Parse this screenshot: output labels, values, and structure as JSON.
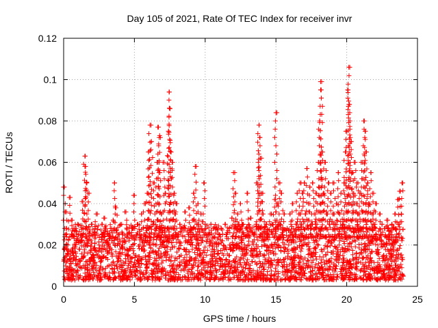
{
  "chart_data": {
    "type": "scatter",
    "title": "Day 105 of 2021, Rate Of TEC Index for receiver invr",
    "xlabel": "GPS time / hours",
    "ylabel": "ROTI / TECUs",
    "xlim": [
      0,
      25
    ],
    "ylim": [
      0,
      0.12
    ],
    "xticks": [
      0,
      5,
      10,
      15,
      20,
      25
    ],
    "xtick_labels": [
      "0",
      "5",
      "10",
      "15",
      "20",
      "25"
    ],
    "yticks": [
      0,
      0.02,
      0.04,
      0.06,
      0.08,
      0.1,
      0.12
    ],
    "ytick_labels": [
      "0",
      "0.02",
      "0.04",
      "0.06",
      "0.08",
      "0.1",
      "0.12"
    ],
    "grid": true,
    "marker": "+",
    "color": "#ff0000",
    "series": [
      {
        "name": "ROTI",
        "points": [
          [
            0.05,
            0.048
          ],
          [
            0.1,
            0.025
          ],
          [
            0.2,
            0.036
          ],
          [
            0.3,
            0.02
          ],
          [
            0.4,
            0.043
          ],
          [
            0.5,
            0.012
          ],
          [
            0.6,
            0.032
          ],
          [
            0.7,
            0.015
          ],
          [
            0.8,
            0.028
          ],
          [
            0.9,
            0.01
          ],
          [
            1.0,
            0.03
          ],
          [
            1.1,
            0.018
          ],
          [
            1.2,
            0.025
          ],
          [
            1.3,
            0.041
          ],
          [
            1.4,
            0.014
          ],
          [
            1.5,
            0.063
          ],
          [
            1.55,
            0.058
          ],
          [
            1.6,
            0.05
          ],
          [
            1.7,
            0.022
          ],
          [
            1.8,
            0.045
          ],
          [
            1.9,
            0.012
          ],
          [
            2.0,
            0.03
          ],
          [
            2.1,
            0.01
          ],
          [
            2.2,
            0.026
          ],
          [
            2.3,
            0.035
          ],
          [
            2.4,
            0.015
          ],
          [
            2.5,
            0.02
          ],
          [
            2.6,
            0.012
          ],
          [
            2.7,
            0.03
          ],
          [
            2.8,
            0.018
          ],
          [
            2.9,
            0.033
          ],
          [
            3.0,
            0.014
          ],
          [
            3.1,
            0.022
          ],
          [
            3.2,
            0.01
          ],
          [
            3.3,
            0.028
          ],
          [
            3.4,
            0.016
          ],
          [
            3.5,
            0.032
          ],
          [
            3.6,
            0.05
          ],
          [
            3.7,
            0.038
          ],
          [
            3.8,
            0.012
          ],
          [
            3.9,
            0.025
          ],
          [
            4.0,
            0.018
          ],
          [
            4.1,
            0.03
          ],
          [
            4.2,
            0.01
          ],
          [
            4.3,
            0.022
          ],
          [
            4.4,
            0.036
          ],
          [
            4.5,
            0.015
          ],
          [
            4.6,
            0.026
          ],
          [
            4.7,
            0.012
          ],
          [
            4.8,
            0.028
          ],
          [
            4.9,
            0.02
          ],
          [
            5.0,
            0.044
          ],
          [
            5.1,
            0.015
          ],
          [
            5.2,
            0.03
          ],
          [
            5.3,
            0.012
          ],
          [
            5.4,
            0.025
          ],
          [
            5.5,
            0.035
          ],
          [
            5.6,
            0.018
          ],
          [
            5.7,
            0.04
          ],
          [
            5.8,
            0.022
          ],
          [
            5.9,
            0.045
          ],
          [
            6.0,
            0.065
          ],
          [
            6.1,
            0.078
          ],
          [
            6.2,
            0.07
          ],
          [
            6.3,
            0.03
          ],
          [
            6.4,
            0.05
          ],
          [
            6.5,
            0.02
          ],
          [
            6.6,
            0.06
          ],
          [
            6.7,
            0.077
          ],
          [
            6.75,
            0.072
          ],
          [
            6.8,
            0.055
          ],
          [
            6.9,
            0.035
          ],
          [
            7.0,
            0.02
          ],
          [
            7.1,
            0.06
          ],
          [
            7.2,
            0.045
          ],
          [
            7.3,
            0.028
          ],
          [
            7.4,
            0.075
          ],
          [
            7.45,
            0.094
          ],
          [
            7.5,
            0.086
          ],
          [
            7.6,
            0.065
          ],
          [
            7.7,
            0.06
          ],
          [
            7.8,
            0.045
          ],
          [
            7.9,
            0.035
          ],
          [
            8.0,
            0.04
          ],
          [
            8.1,
            0.025
          ],
          [
            8.2,
            0.03
          ],
          [
            8.3,
            0.015
          ],
          [
            8.4,
            0.028
          ],
          [
            8.5,
            0.018
          ],
          [
            8.6,
            0.036
          ],
          [
            8.7,
            0.012
          ],
          [
            8.8,
            0.025
          ],
          [
            8.9,
            0.038
          ],
          [
            9.0,
            0.02
          ],
          [
            9.1,
            0.032
          ],
          [
            9.2,
            0.045
          ],
          [
            9.3,
            0.058
          ],
          [
            9.4,
            0.03
          ],
          [
            9.5,
            0.04
          ],
          [
            9.6,
            0.015
          ],
          [
            9.7,
            0.035
          ],
          [
            9.8,
            0.022
          ],
          [
            9.9,
            0.05
          ],
          [
            10.0,
            0.03
          ],
          [
            10.1,
            0.015
          ],
          [
            10.2,
            0.025
          ],
          [
            10.3,
            0.012
          ],
          [
            10.4,
            0.03
          ],
          [
            10.5,
            0.018
          ],
          [
            10.6,
            0.028
          ],
          [
            10.7,
            0.01
          ],
          [
            10.8,
            0.02
          ],
          [
            10.9,
            0.016
          ],
          [
            11.0,
            0.025
          ],
          [
            11.1,
            0.012
          ],
          [
            11.2,
            0.022
          ],
          [
            11.3,
            0.015
          ],
          [
            11.4,
            0.03
          ],
          [
            11.5,
            0.018
          ],
          [
            11.6,
            0.026
          ],
          [
            11.7,
            0.012
          ],
          [
            11.8,
            0.02
          ],
          [
            11.9,
            0.033
          ],
          [
            12.0,
            0.055
          ],
          [
            12.1,
            0.045
          ],
          [
            12.2,
            0.028
          ],
          [
            12.3,
            0.035
          ],
          [
            12.4,
            0.018
          ],
          [
            12.5,
            0.04
          ],
          [
            12.6,
            0.022
          ],
          [
            12.7,
            0.03
          ],
          [
            12.8,
            0.015
          ],
          [
            12.9,
            0.028
          ],
          [
            13.0,
            0.045
          ],
          [
            13.1,
            0.02
          ],
          [
            13.2,
            0.033
          ],
          [
            13.3,
            0.012
          ],
          [
            13.4,
            0.025
          ],
          [
            13.5,
            0.018
          ],
          [
            13.6,
            0.03
          ],
          [
            13.7,
            0.05
          ],
          [
            13.8,
            0.078
          ],
          [
            13.85,
            0.072
          ],
          [
            13.9,
            0.062
          ],
          [
            14.0,
            0.045
          ],
          [
            14.1,
            0.035
          ],
          [
            14.2,
            0.02
          ],
          [
            14.3,
            0.03
          ],
          [
            14.4,
            0.012
          ],
          [
            14.5,
            0.025
          ],
          [
            14.6,
            0.035
          ],
          [
            14.7,
            0.02
          ],
          [
            14.8,
            0.03
          ],
          [
            14.9,
            0.042
          ],
          [
            15.0,
            0.084
          ],
          [
            15.1,
            0.04
          ],
          [
            15.2,
            0.05
          ],
          [
            15.3,
            0.03
          ],
          [
            15.4,
            0.045
          ],
          [
            15.5,
            0.025
          ],
          [
            15.6,
            0.035
          ],
          [
            15.7,
            0.018
          ],
          [
            15.8,
            0.028
          ],
          [
            15.9,
            0.02
          ],
          [
            16.0,
            0.035
          ],
          [
            16.1,
            0.022
          ],
          [
            16.2,
            0.04
          ],
          [
            16.3,
            0.025
          ],
          [
            16.4,
            0.03
          ],
          [
            16.5,
            0.045
          ],
          [
            16.6,
            0.035
          ],
          [
            16.7,
            0.05
          ],
          [
            16.8,
            0.03
          ],
          [
            16.9,
            0.045
          ],
          [
            17.0,
            0.05
          ],
          [
            17.1,
            0.035
          ],
          [
            17.2,
            0.057
          ],
          [
            17.3,
            0.04
          ],
          [
            17.4,
            0.048
          ],
          [
            17.5,
            0.03
          ],
          [
            17.6,
            0.05
          ],
          [
            17.7,
            0.035
          ],
          [
            17.8,
            0.045
          ],
          [
            17.9,
            0.03
          ],
          [
            18.0,
            0.06
          ],
          [
            18.1,
            0.08
          ],
          [
            18.15,
            0.099
          ],
          [
            18.2,
            0.095
          ],
          [
            18.3,
            0.065
          ],
          [
            18.4,
            0.045
          ],
          [
            18.5,
            0.06
          ],
          [
            18.6,
            0.035
          ],
          [
            18.7,
            0.05
          ],
          [
            18.8,
            0.03
          ],
          [
            18.9,
            0.045
          ],
          [
            19.0,
            0.035
          ],
          [
            19.1,
            0.05
          ],
          [
            19.2,
            0.03
          ],
          [
            19.3,
            0.04
          ],
          [
            19.4,
            0.055
          ],
          [
            19.5,
            0.035
          ],
          [
            19.6,
            0.045
          ],
          [
            19.7,
            0.03
          ],
          [
            19.8,
            0.05
          ],
          [
            19.9,
            0.065
          ],
          [
            20.0,
            0.075
          ],
          [
            20.1,
            0.095
          ],
          [
            20.15,
            0.106
          ],
          [
            20.2,
            0.088
          ],
          [
            20.3,
            0.07
          ],
          [
            20.4,
            0.055
          ],
          [
            20.5,
            0.045
          ],
          [
            20.6,
            0.06
          ],
          [
            20.7,
            0.04
          ],
          [
            20.8,
            0.05
          ],
          [
            20.9,
            0.035
          ],
          [
            21.0,
            0.045
          ],
          [
            21.1,
            0.06
          ],
          [
            21.2,
            0.08
          ],
          [
            21.3,
            0.075
          ],
          [
            21.4,
            0.065
          ],
          [
            21.5,
            0.05
          ],
          [
            21.6,
            0.04
          ],
          [
            21.7,
            0.055
          ],
          [
            21.8,
            0.035
          ],
          [
            21.9,
            0.045
          ],
          [
            22.0,
            0.03
          ],
          [
            22.1,
            0.04
          ],
          [
            22.2,
            0.02
          ],
          [
            22.3,
            0.035
          ],
          [
            22.4,
            0.025
          ],
          [
            22.5,
            0.03
          ],
          [
            22.6,
            0.015
          ],
          [
            22.7,
            0.028
          ],
          [
            22.8,
            0.02
          ],
          [
            22.9,
            0.032
          ],
          [
            23.0,
            0.025
          ],
          [
            23.1,
            0.018
          ],
          [
            23.2,
            0.03
          ],
          [
            23.3,
            0.022
          ],
          [
            23.4,
            0.035
          ],
          [
            23.5,
            0.028
          ],
          [
            23.6,
            0.042
          ],
          [
            23.7,
            0.03
          ],
          [
            23.8,
            0.046
          ],
          [
            23.9,
            0.05
          ]
        ],
        "baseline_band": {
          "description": "dense cloud of points between roughly 0.003 and 0.03 TECU/s across the full 0-24 h range",
          "x_range": [
            0,
            24
          ],
          "y_range": [
            0.003,
            0.03
          ]
        }
      }
    ]
  }
}
